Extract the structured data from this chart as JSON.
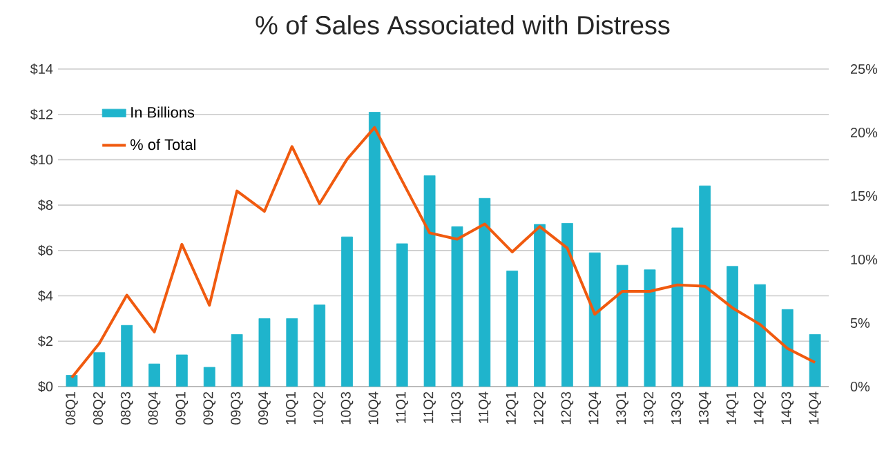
{
  "chart_data": {
    "type": "bar",
    "title": "% of Sales Associated with Distress",
    "categories": [
      "08Q1",
      "08Q2",
      "08Q3",
      "08Q4",
      "09Q1",
      "09Q2",
      "09Q3",
      "09Q4",
      "10Q1",
      "10Q2",
      "10Q3",
      "10Q4",
      "11Q1",
      "11Q2",
      "11Q3",
      "11Q4",
      "12Q1",
      "12Q2",
      "12Q3",
      "12Q4",
      "13Q1",
      "13Q2",
      "13Q3",
      "13Q4",
      "14Q1",
      "14Q2",
      "14Q3",
      "14Q4"
    ],
    "series": [
      {
        "name": "In Billions",
        "color": "#1fb4cc",
        "values": [
          0.5,
          1.5,
          2.7,
          1.0,
          1.4,
          0.85,
          2.3,
          3.0,
          3.0,
          3.6,
          6.6,
          12.1,
          6.3,
          9.3,
          7.05,
          8.3,
          5.1,
          7.15,
          7.2,
          5.9,
          5.35,
          5.15,
          7.0,
          8.85,
          5.3,
          4.5,
          3.4,
          2.3
        ]
      },
      {
        "name": "% of Total",
        "type": "line",
        "axis": "y2",
        "color": "#f05a0f",
        "values": [
          0.7,
          3.4,
          7.2,
          4.3,
          11.2,
          6.4,
          15.4,
          13.8,
          18.9,
          14.4,
          17.9,
          20.4,
          16.2,
          12.1,
          11.6,
          12.8,
          10.6,
          12.6,
          10.9,
          5.7,
          7.5,
          7.5,
          8.0,
          7.9,
          6.2,
          4.9,
          3.0,
          1.9
        ]
      }
    ],
    "ylim": [
      0,
      14
    ],
    "yticks": [
      {
        "value": 0,
        "label": "$0"
      },
      {
        "value": 2,
        "label": "$2"
      },
      {
        "value": 4,
        "label": "$4"
      },
      {
        "value": 6,
        "label": "$6"
      },
      {
        "value": 8,
        "label": "$8"
      },
      {
        "value": 10,
        "label": "$10"
      },
      {
        "value": 12,
        "label": "$12"
      },
      {
        "value": 14,
        "label": "$14"
      }
    ],
    "y2lim": [
      0,
      25
    ],
    "y2ticks": [
      {
        "value": 0,
        "label": "0%"
      },
      {
        "value": 5,
        "label": "5%"
      },
      {
        "value": 10,
        "label": "10%"
      },
      {
        "value": 15,
        "label": "15%"
      },
      {
        "value": 20,
        "label": "20%"
      },
      {
        "value": 25,
        "label": "25%"
      }
    ],
    "grid": "y",
    "legend": "top left",
    "marker": "none",
    "line_style": "solid"
  }
}
